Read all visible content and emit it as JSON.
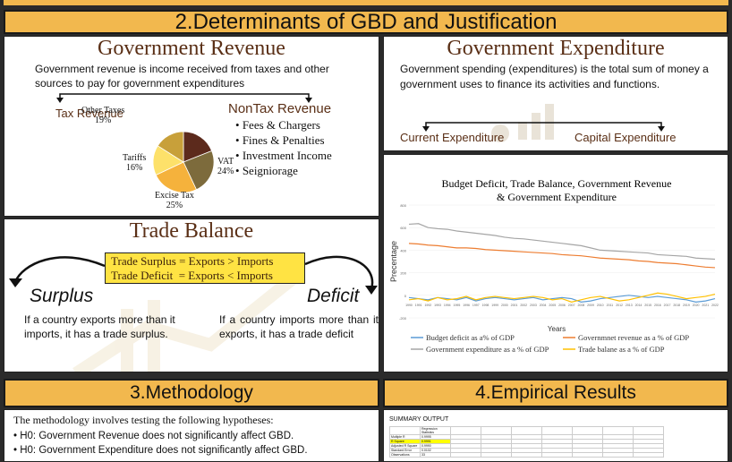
{
  "sections": {
    "s2": "2.Determinants of GBD and Justification",
    "s3": "3.Methodology",
    "s4": "4.Empirical Results"
  },
  "revenue": {
    "title": "Government Revenue",
    "desc": "Government revenue is income received from taxes and other sources to pay for government expenditures",
    "tax_head": "Tax Revenue",
    "nontax_head": "NonTax Revenue",
    "nontax_items": [
      "Fees & Chargers",
      "Fines & Penalties",
      "Investment Income",
      "Seigniorage"
    ],
    "pie": [
      {
        "label": "Other Taxes",
        "pct": "19%",
        "value": 19,
        "color": "#5c2a1c"
      },
      {
        "label": "VAT",
        "pct": "24%",
        "value": 24,
        "color": "#7d6b3c"
      },
      {
        "label": "Excise Tax",
        "pct": "25%",
        "value": 25,
        "color": "#f5b23c"
      },
      {
        "label": "Tariffs",
        "pct": "16%",
        "value": 16,
        "color": "#fde16a"
      },
      {
        "label": "",
        "pct": "",
        "value": 16,
        "color": "#c8a03a"
      }
    ]
  },
  "expenditure": {
    "title": "Government Expenditure",
    "desc": "Government spending (expenditures) is the total sum of money a government uses to finance its activities and functions.",
    "current": "Current Expenditure",
    "capital": "Capital Expenditure"
  },
  "trade": {
    "title": "Trade Balance",
    "line1": "Trade Surplus = Exports > Imports",
    "line2": "Trade Deficit  = Exports < Imports",
    "surplus": "Surplus",
    "deficit": "Deficit",
    "surplus_text": "If a country exports more than it imports, it has a trade surplus.",
    "deficit_text": "If a country imports more than it exports, it has a trade deficit"
  },
  "chart_data": {
    "type": "line",
    "title": "Budget Deficit, Trade Balance, Government Revenue & Government Expenditure",
    "xlabel": "Years",
    "ylabel": "Precentage",
    "ylim": [
      -200,
      800
    ],
    "yticks": [
      800,
      600,
      400,
      200,
      0,
      -200
    ],
    "x": [
      "1990",
      "1991",
      "1992",
      "1993",
      "1994",
      "1995",
      "1996",
      "1997",
      "1998",
      "1999",
      "2000",
      "2001",
      "2002",
      "2003",
      "2004",
      "2005",
      "2006",
      "2007",
      "2008",
      "2009",
      "2010",
      "2011",
      "2012",
      "2013",
      "2014",
      "2015",
      "2016",
      "2017",
      "2018",
      "2019",
      "2020",
      "2021",
      "2022"
    ],
    "series": [
      {
        "name": "Budget deficit as a% of GDP",
        "color": "#5b9bd5",
        "values": [
          -20,
          -30,
          -40,
          -20,
          -30,
          -40,
          -20,
          -50,
          -30,
          -20,
          -30,
          -40,
          -30,
          -20,
          -40,
          -30,
          -20,
          -30,
          -60,
          -50,
          -30,
          -20,
          -10,
          0,
          -10,
          -20,
          -10,
          -20,
          -30,
          -40,
          -60,
          -50,
          -30
        ]
      },
      {
        "name": "Governmnet revenue as a % of GDP",
        "color": "#ed7d31",
        "values": [
          460,
          455,
          445,
          440,
          430,
          420,
          420,
          415,
          405,
          400,
          395,
          390,
          385,
          380,
          375,
          370,
          360,
          355,
          350,
          340,
          330,
          325,
          320,
          315,
          305,
          300,
          290,
          285,
          280,
          270,
          260,
          250,
          245
        ]
      },
      {
        "name": "Government expenditure as a % of GDP",
        "color": "#a5a5a5",
        "values": [
          630,
          635,
          600,
          590,
          585,
          570,
          560,
          550,
          540,
          530,
          515,
          505,
          500,
          490,
          480,
          470,
          460,
          450,
          440,
          420,
          400,
          395,
          390,
          385,
          380,
          375,
          360,
          355,
          350,
          345,
          330,
          325,
          320
        ]
      },
      {
        "name": "Trade balane as a % of GDP",
        "color": "#ffc000",
        "values": [
          -40,
          -30,
          -50,
          -20,
          -40,
          -30,
          -10,
          -40,
          -20,
          -10,
          -20,
          -30,
          -20,
          -10,
          -20,
          -40,
          -30,
          -60,
          -40,
          -20,
          -10,
          -30,
          -50,
          -40,
          -20,
          0,
          20,
          10,
          -10,
          -30,
          -20,
          -10,
          10
        ]
      }
    ]
  },
  "methodology": {
    "intro": "The methodology involves testing the following hypotheses:",
    "h": [
      "H0: Government Revenue  does not significantly affect GBD.",
      "H0: Government Expenditure does not significantly affect GBD."
    ]
  },
  "results": {
    "summary_title": "SUMMARY OUTPUT",
    "table_header": "Regression Statistics",
    "rows": [
      [
        "Multiple R",
        "0.9995"
      ],
      [
        "R Square",
        "0.9991"
      ],
      [
        "Adjusted R Square",
        "0.9990"
      ],
      [
        "Standard Error",
        "0.0102"
      ],
      [
        "Observations",
        "33"
      ]
    ]
  }
}
